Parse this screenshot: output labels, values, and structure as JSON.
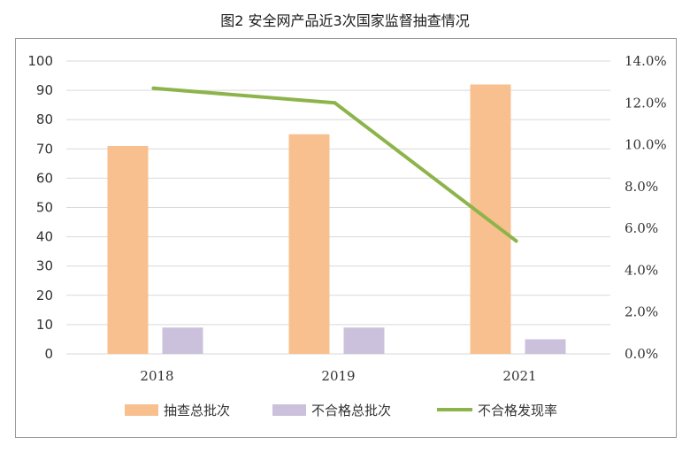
{
  "chart_data": {
    "type": "bar",
    "title": "图2  安全网产品近3次国家监督抽查情况",
    "categories": [
      "2018",
      "2019",
      "2021"
    ],
    "series": [
      {
        "name": "抽查总批次",
        "kind": "bar",
        "axis": "left",
        "color": "#f8c08f",
        "values": [
          71,
          75,
          92
        ]
      },
      {
        "name": "不合格总批次",
        "kind": "bar",
        "axis": "left",
        "color": "#cbc1dc",
        "values": [
          9,
          9,
          5
        ]
      },
      {
        "name": "不合格发现率",
        "kind": "line",
        "axis": "right",
        "color": "#8db44b",
        "values": [
          12.7,
          12.0,
          5.4
        ]
      }
    ],
    "y_left": {
      "ylim": [
        0,
        100
      ],
      "ticks": [
        "0",
        "10",
        "20",
        "30",
        "40",
        "50",
        "60",
        "70",
        "80",
        "90",
        "100"
      ]
    },
    "y_right": {
      "ylim": [
        0,
        14
      ],
      "ticks": [
        "0.0%",
        "2.0%",
        "4.0%",
        "6.0%",
        "8.0%",
        "10.0%",
        "12.0%",
        "14.0%"
      ]
    },
    "grid": true,
    "legend_position": "bottom"
  }
}
